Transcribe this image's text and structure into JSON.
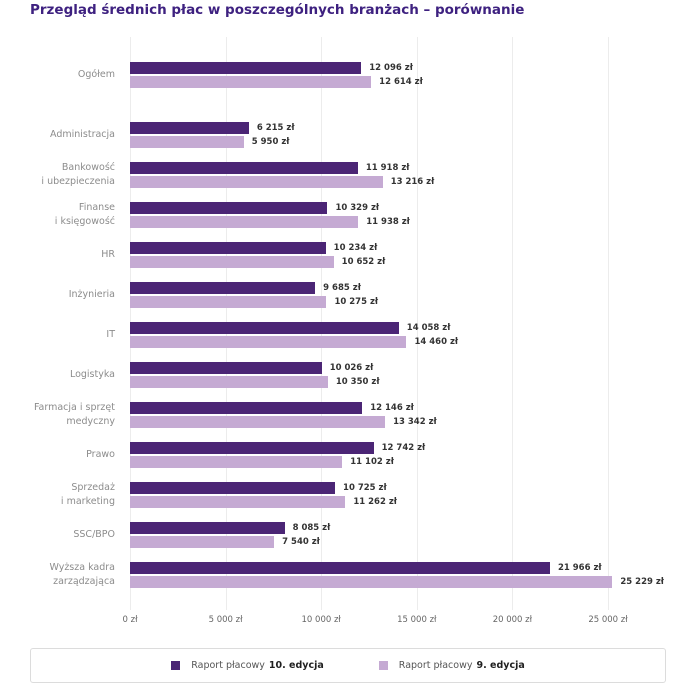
{
  "title": "Przegląd średnich płac w poszczególnych branżach – porównanie",
  "colors": {
    "edition10": "#4b2575",
    "edition9": "#c5aad3",
    "title_text": "#3e2180",
    "grid": "#ececec"
  },
  "chart_data": {
    "type": "bar",
    "orientation": "horizontal",
    "title": "Przegląd średnich płac w poszczególnych branżach – porównanie",
    "categories": [
      "Ogółem",
      "Administracja",
      "Bankowość\ni ubezpieczenia",
      "Finanse\ni księgowość",
      "HR",
      "Inżynieria",
      "IT",
      "Logistyka",
      "Farmacja i sprzęt\nmedyczny",
      "Prawo",
      "Sprzedaż\ni marketing",
      "SSC/BPO",
      "Wyższa kadra\nzarządzająca"
    ],
    "series": [
      {
        "name": "Raport płacowy 10. edycja",
        "color": "#4b2575",
        "values": [
          12096,
          6215,
          11918,
          10329,
          10234,
          9685,
          14058,
          10026,
          12146,
          12742,
          10725,
          8085,
          21966
        ],
        "labels": [
          "12 096 zł",
          "6 215 zł",
          "11 918 zł",
          "10 329 zł",
          "10 234 zł",
          "9 685 zł",
          "14 058 zł",
          "10 026 zł",
          "12 146 zł",
          "12 742 zł",
          "10 725 zł",
          "8 085 zł",
          "21 966 zł"
        ]
      },
      {
        "name": "Raport płacowy 9. edycja",
        "color": "#c5aad3",
        "values": [
          12614,
          5950,
          13216,
          11938,
          10652,
          10275,
          14460,
          10350,
          13342,
          11102,
          11262,
          7540,
          25229
        ],
        "labels": [
          "12 614 zł",
          "5 950 zł",
          "13 216 zł",
          "11 938 zł",
          "10 652 zł",
          "10 275 zł",
          "14 460 zł",
          "10 350 zł",
          "13 342 zł",
          "11 102 zł",
          "11 262 zł",
          "7 540 zł",
          "25 229 zł"
        ]
      }
    ],
    "xticks": {
      "values": [
        0,
        5000,
        10000,
        15000,
        20000,
        25000
      ],
      "labels": [
        "0 zł",
        "5 000 zł",
        "10 000 zł",
        "15 000 zł",
        "20 000 zł",
        "25 000 zł"
      ]
    },
    "xlim": [
      0,
      25000
    ],
    "grid": "vertical",
    "legend_position": "bottom"
  },
  "legend": {
    "items": [
      {
        "prefix": "Raport płacowy",
        "bold": "10. edycja",
        "color": "#4b2575"
      },
      {
        "prefix": "Raport płacowy",
        "bold": "9. edycja",
        "color": "#c5aad3"
      }
    ]
  }
}
